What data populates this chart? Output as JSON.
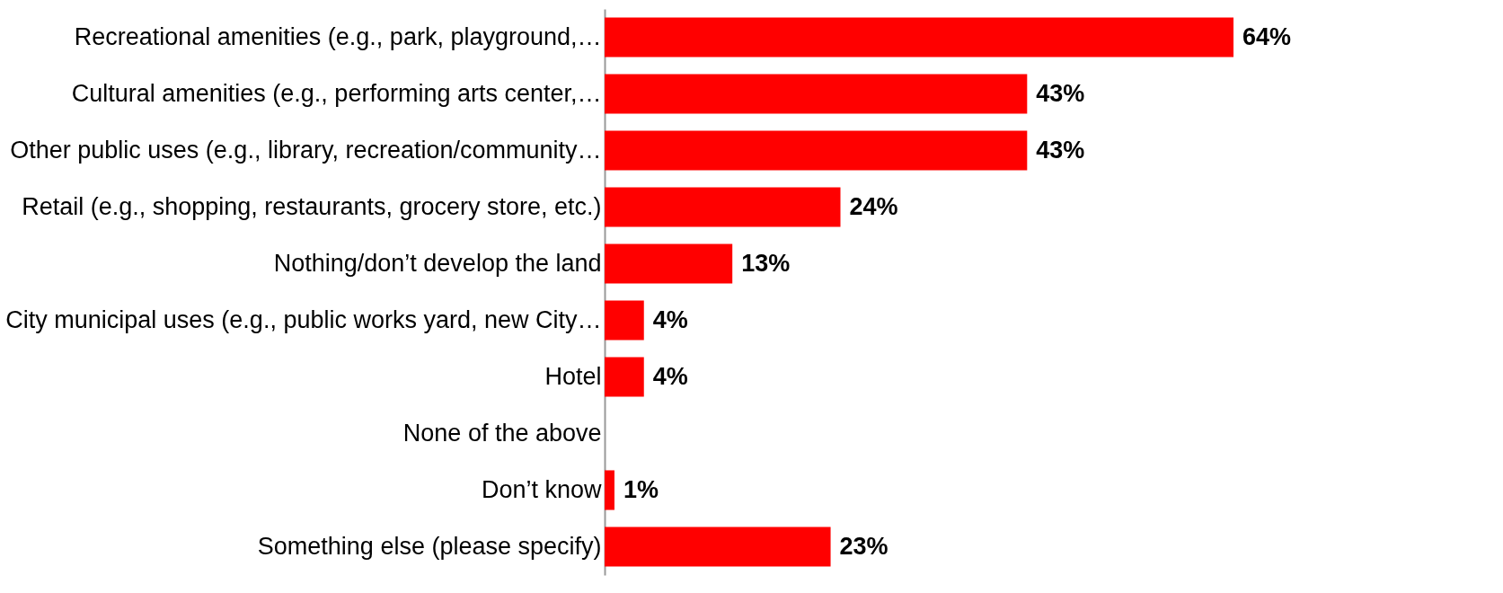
{
  "chart_data": {
    "type": "bar",
    "orientation": "horizontal",
    "categories": [
      "Recreational amenities (e.g., park, playground,…",
      "Cultural amenities (e.g., performing arts center,…",
      "Other public uses (e.g., library, recreation/community…",
      "Retail (e.g., shopping, restaurants, grocery store, etc.)",
      "Nothing/don’t develop the land",
      "City municipal uses (e.g., public works yard, new City…",
      "Hotel",
      "None of the above",
      "Don’t know",
      "Something else (please specify)"
    ],
    "values": [
      64,
      43,
      43,
      24,
      13,
      4,
      4,
      null,
      1,
      23
    ],
    "value_labels": [
      "64%",
      "43%",
      "43%",
      "24%",
      "13%",
      "4%",
      "4%",
      null,
      "1%",
      "23%"
    ],
    "color": "#ff0000",
    "grid": false
  }
}
